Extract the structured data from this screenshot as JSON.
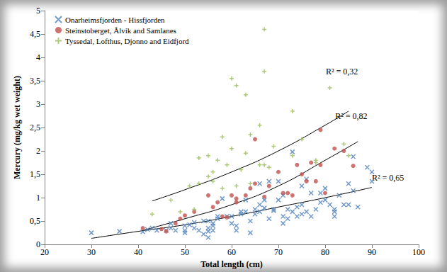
{
  "chart_data": {
    "type": "scatter",
    "x_label": "Total length (cm)",
    "y_label": "Mercury (mg/kg wet weight)",
    "xlim": [
      20,
      100
    ],
    "xticks": [
      20,
      30,
      40,
      50,
      60,
      70,
      80,
      90,
      100
    ],
    "ylim": [
      0,
      5
    ],
    "yticks": [
      0,
      {
        "value": 0.5,
        "label": "0,5"
      },
      1,
      {
        "value": 1.5,
        "label": "1,5"
      },
      2,
      {
        "value": 2.5,
        "label": "2,5"
      },
      3,
      {
        "value": 3.5,
        "label": "3,5"
      },
      4,
      {
        "value": 4.5,
        "label": "4,5"
      },
      5
    ],
    "grid": false,
    "legend": "upper left",
    "series": [
      {
        "name": "Onarheimsfjorden - Hissfjorden",
        "color": "#4f81bd",
        "marker": "x",
        "x": [
          30,
          36,
          41,
          42,
          43,
          44,
          46,
          47,
          47,
          48,
          50,
          50,
          50,
          51,
          52,
          52,
          53,
          54,
          54,
          55,
          55,
          55,
          55,
          56,
          56,
          56,
          57,
          57,
          58,
          59,
          60,
          60,
          61,
          61,
          62,
          62,
          63,
          63,
          64,
          64,
          65,
          65,
          66,
          66,
          67,
          67,
          68,
          68,
          69,
          69,
          70,
          70,
          71,
          71,
          71,
          72,
          72,
          73,
          73,
          74,
          74,
          75,
          75,
          76,
          77,
          77,
          78,
          79,
          79,
          80,
          80,
          81,
          82,
          82,
          82,
          83,
          84,
          85,
          85,
          86,
          86,
          87,
          89,
          90,
          90,
          66,
          75,
          76
        ],
        "values": [
          0.25,
          0.28,
          0.27,
          0.32,
          0.35,
          0.3,
          0.3,
          0.35,
          0.45,
          0.3,
          0.25,
          0.3,
          0.4,
          0.42,
          0.47,
          0.35,
          0.3,
          0.5,
          0.22,
          0.5,
          0.35,
          0.28,
          0.15,
          0.3,
          0.4,
          0.45,
          0.6,
          0.55,
          0.98,
          0.6,
          0.45,
          0.6,
          0.3,
          0.4,
          0.7,
          0.65,
          0.7,
          0.95,
          0.25,
          0.5,
          0.75,
          0.65,
          0.7,
          0.85,
          0.95,
          0.78,
          0.55,
          1.35,
          0.75,
          0.72,
          1.35,
          0.95,
          0.45,
          0.6,
          1.05,
          0.55,
          0.75,
          1.98,
          0.7,
          0.8,
          0.6,
          0.65,
          0.85,
          0.7,
          0.6,
          1.1,
          0.75,
          1.1,
          0.9,
          0.95,
          1.2,
          0.85,
          0.6,
          0.75,
          0.7,
          1.05,
          0.85,
          1.3,
          0.85,
          1.88,
          1.15,
          0.8,
          1.65,
          1.55,
          1.35,
          1.3,
          1.25,
          1.4
        ],
        "trendline": {
          "x": [
            30,
            40,
            50,
            60,
            70,
            80,
            90
          ],
          "values": [
            0.13,
            0.28,
            0.42,
            0.6,
            0.8,
            1.0,
            1.22
          ],
          "label": "R² = 0,65"
        }
      },
      {
        "name": "Steinstoberget, Ålvik and Samlanes",
        "color": "#c0504d",
        "marker": "o",
        "x": [
          41,
          45,
          46,
          48,
          49,
          50,
          52,
          55,
          56,
          57,
          58,
          59,
          60,
          61,
          61,
          63,
          64,
          65,
          65,
          67,
          68,
          70,
          71,
          72,
          73,
          74,
          75,
          76,
          77,
          78,
          79,
          79,
          80,
          82,
          84,
          86
        ],
        "values": [
          0.35,
          0.33,
          0.28,
          0.45,
          0.55,
          0.62,
          0.7,
          1.05,
          0.8,
          0.9,
          0.6,
          0.58,
          1.05,
          0.9,
          0.98,
          1.05,
          1.2,
          2.25,
          1.3,
          1.02,
          1.25,
          1.55,
          1.1,
          1.1,
          1.05,
          1.7,
          1.5,
          1.35,
          1.75,
          1.35,
          2.45,
          1.7,
          1.1,
          2.05,
          2.0,
          1.68
        ],
        "trendline": {
          "x": [
            41,
            50,
            60,
            70,
            80,
            87
          ],
          "values": [
            0.3,
            0.55,
            0.85,
            1.25,
            1.8,
            2.2
          ],
          "label": "R² = 0,82"
        }
      },
      {
        "name": "Tyssedal, Lofthus, Djonno and Eidfjord",
        "color": "#9bbb59",
        "marker": "+",
        "x": [
          43,
          47,
          49,
          51,
          52,
          53,
          53,
          55,
          55,
          56,
          56,
          57,
          58,
          58,
          59,
          60,
          60,
          61,
          61,
          62,
          63,
          63,
          64,
          64,
          66,
          66,
          67,
          67,
          67,
          68,
          69,
          73,
          73,
          75,
          78,
          81,
          84,
          85,
          78
        ],
        "values": [
          0.65,
          0.95,
          0.7,
          1.25,
          0.75,
          1.85,
          1.3,
          1.45,
          1.9,
          1.35,
          1.55,
          1.8,
          2.3,
          1.2,
          1.7,
          3.55,
          2.05,
          3.4,
          1.25,
          1.6,
          3.2,
          1.95,
          2.35,
          1.3,
          2.55,
          1.7,
          4.6,
          3.7,
          1.7,
          1.65,
          2.1,
          2.85,
          1.9,
          2.25,
          1.75,
          3.35,
          2.15,
          1.9,
          1.8
        ],
        "trendline": {
          "x": [
            43,
            50,
            60,
            70,
            80,
            85
          ],
          "values": [
            0.93,
            1.17,
            1.55,
            2.0,
            2.55,
            2.85
          ],
          "label": "R² = 0,32"
        }
      }
    ]
  }
}
